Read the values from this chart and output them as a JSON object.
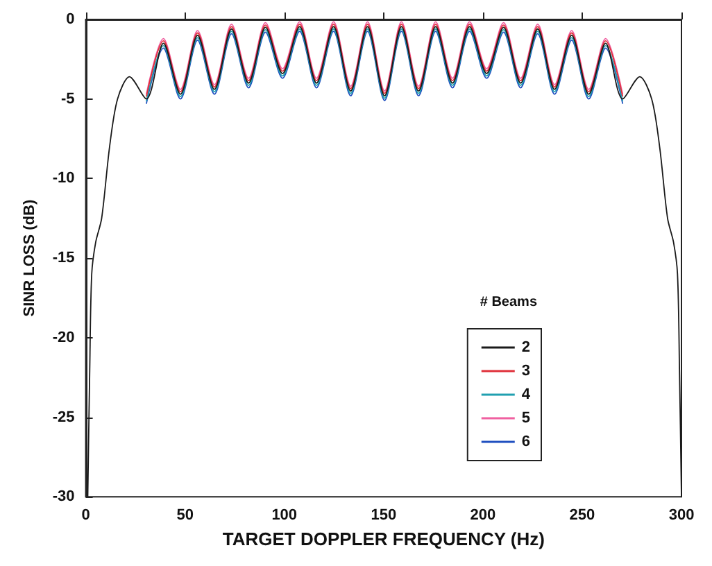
{
  "chart_data": {
    "type": "line",
    "xlabel": "TARGET DOPPLER FREQUENCY (Hz)",
    "ylabel": "SINR LOSS (dB)",
    "legend_title": "# Beams",
    "x": [
      1,
      2,
      3,
      5,
      8,
      12,
      16,
      22,
      30.5,
      39.1,
      47.7,
      56.3,
      64.8,
      73.4,
      82,
      90.5,
      99.1,
      107.7,
      116.2,
      124.8,
      133.4,
      141.9,
      150.5,
      159,
      167.6,
      176.2,
      184.7,
      193.3,
      201.9,
      210.4,
      219,
      227.6,
      236.1,
      244.7,
      253.3,
      261.8,
      270.4,
      279,
      285,
      289,
      293,
      296,
      298,
      299,
      300
    ],
    "series": [
      {
        "name": "2",
        "color": "#1a1a1a",
        "values": [
          -30,
          -22,
          -16,
          -14,
          -12.5,
          -8,
          -5,
          -3.6,
          -5.0,
          -1.5,
          -4.7,
          -1.0,
          -4.4,
          -0.6,
          -4.0,
          -0.5,
          -3.4,
          -0.45,
          -4.0,
          -0.45,
          -4.5,
          -0.45,
          -4.8,
          -0.45,
          -4.5,
          -0.45,
          -4.0,
          -0.45,
          -3.4,
          -0.5,
          -4.0,
          -0.6,
          -4.4,
          -1.0,
          -4.7,
          -1.5,
          -5.0,
          -3.6,
          -5,
          -8,
          -12.5,
          -14,
          -16,
          -22,
          -30
        ]
      },
      {
        "name": "3",
        "color": "#e0303a",
        "values": [
          null,
          null,
          null,
          null,
          null,
          null,
          null,
          null,
          -4.85,
          -1.35,
          -4.55,
          -0.85,
          -4.25,
          -0.45,
          -3.85,
          -0.35,
          -3.25,
          -0.3,
          -3.85,
          -0.3,
          -4.35,
          -0.3,
          -4.65,
          -0.3,
          -4.35,
          -0.3,
          -3.85,
          -0.3,
          -3.25,
          -0.35,
          -3.85,
          -0.45,
          -4.25,
          -0.85,
          -4.55,
          -1.35,
          -4.85,
          null,
          null,
          null,
          null,
          null,
          null,
          null,
          null
        ]
      },
      {
        "name": "4",
        "color": "#20a0b0",
        "values": [
          null,
          null,
          null,
          null,
          null,
          null,
          null,
          null,
          -5.15,
          -1.65,
          -4.85,
          -1.15,
          -4.55,
          -0.75,
          -4.15,
          -0.65,
          -3.55,
          -0.6,
          -4.15,
          -0.6,
          -4.65,
          -0.6,
          -4.95,
          -0.6,
          -4.65,
          -0.6,
          -4.15,
          -0.6,
          -3.55,
          -0.65,
          -4.15,
          -0.75,
          -4.55,
          -1.15,
          -4.85,
          -1.65,
          -5.15,
          null,
          null,
          null,
          null,
          null,
          null,
          null,
          null
        ]
      },
      {
        "name": "5",
        "color": "#f060a0",
        "values": [
          null,
          null,
          null,
          null,
          null,
          null,
          null,
          null,
          -4.7,
          -1.2,
          -4.4,
          -0.7,
          -4.1,
          -0.3,
          -3.7,
          -0.2,
          -3.1,
          -0.15,
          -3.7,
          -0.15,
          -4.2,
          -0.15,
          -4.5,
          -0.15,
          -4.2,
          -0.15,
          -3.7,
          -0.15,
          -3.1,
          -0.2,
          -3.7,
          -0.3,
          -4.1,
          -0.7,
          -4.4,
          -1.2,
          -4.7,
          null,
          null,
          null,
          null,
          null,
          null,
          null,
          null
        ]
      },
      {
        "name": "6",
        "color": "#2050c0",
        "values": [
          null,
          null,
          null,
          null,
          null,
          null,
          null,
          null,
          -5.3,
          -1.8,
          -5.0,
          -1.3,
          -4.7,
          -0.9,
          -4.3,
          -0.8,
          -3.7,
          -0.75,
          -4.3,
          -0.75,
          -4.8,
          -0.75,
          -5.1,
          -0.75,
          -4.8,
          -0.75,
          -4.3,
          -0.75,
          -3.7,
          -0.8,
          -4.3,
          -0.9,
          -4.7,
          -1.3,
          -5.0,
          -1.8,
          -5.3,
          null,
          null,
          null,
          null,
          null,
          null,
          null,
          null
        ]
      }
    ],
    "xlim": [
      0,
      300
    ],
    "ylim": [
      -30,
      0
    ],
    "xticks": [
      0,
      50,
      100,
      150,
      200,
      250,
      300
    ],
    "yticks": [
      -30,
      -25,
      -20,
      -15,
      -10,
      -5,
      0
    ],
    "legend": "bottom right"
  }
}
